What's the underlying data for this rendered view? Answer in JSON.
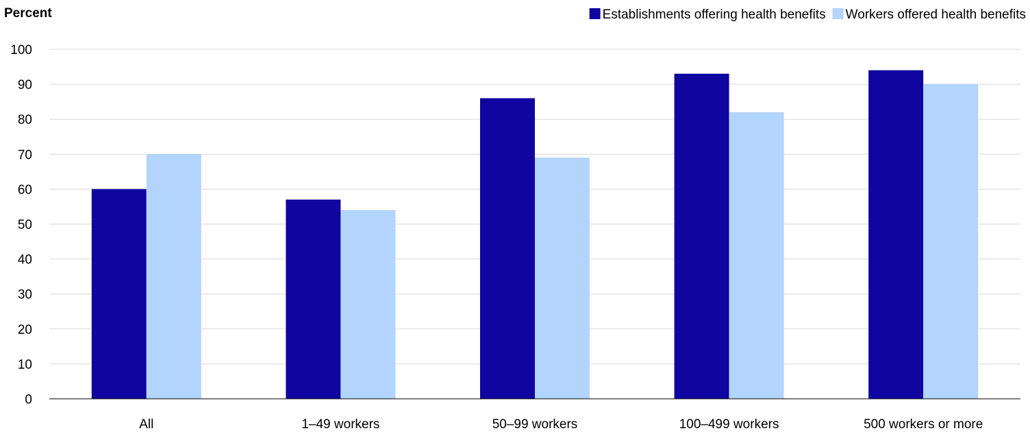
{
  "chart_data": {
    "type": "bar",
    "title": "",
    "ylabel": "Percent",
    "xlabel": "",
    "ylim": [
      0,
      100
    ],
    "yticks": [
      0,
      10,
      20,
      30,
      40,
      50,
      60,
      70,
      80,
      90,
      100
    ],
    "grid": "horizontal",
    "legend_position": "top-right",
    "categories": [
      "All",
      "1–49 workers",
      "50–99 workers",
      "100–499 workers",
      "500 workers or more"
    ],
    "series": [
      {
        "name": "Establishments offering health benefits",
        "color": "#10069f",
        "values": [
          60,
          57,
          86,
          93,
          94
        ]
      },
      {
        "name": "Workers offered health benefits",
        "color": "#b3d4fc",
        "values": [
          70,
          54,
          69,
          82,
          90
        ]
      }
    ]
  }
}
